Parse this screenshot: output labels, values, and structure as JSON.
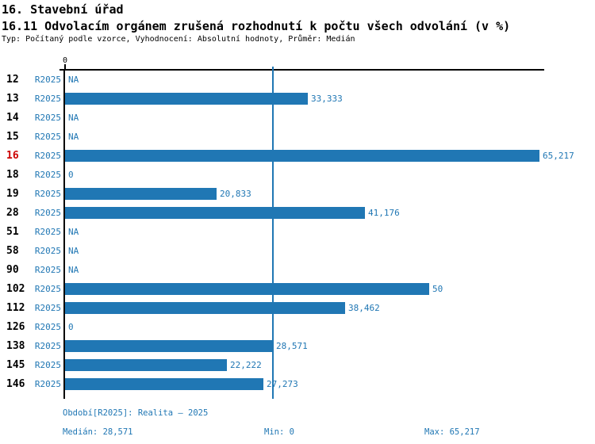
{
  "header": {
    "title1": "16. Stavební úřad",
    "title2": "16.11 Odvolacím orgánem zrušená rozhodnutí k počtu všech odvolání (v %)",
    "subtitle": "Typ: Počítaný podle vzorce, Vyhodnocení: Absolutní hodnoty, Průměr: Medián"
  },
  "chart_data": {
    "type": "bar",
    "orientation": "horizontal",
    "title": "16.11 Odvolacím orgánem zrušená rozhodnutí k počtu všech odvolání (v %)",
    "axis_zero_label": "0",
    "xlim": [
      0,
      65.217
    ],
    "median_value": 28.571,
    "series_name": "R2025",
    "legend_position": "none",
    "grid": "single median gridline",
    "categories": [
      "12",
      "13",
      "14",
      "15",
      "16",
      "18",
      "19",
      "28",
      "51",
      "58",
      "90",
      "102",
      "112",
      "126",
      "138",
      "145",
      "146"
    ],
    "rows": [
      {
        "id": "12",
        "period": "R2025",
        "value": null,
        "label": "NA",
        "highlight": false
      },
      {
        "id": "13",
        "period": "R2025",
        "value": 33.333,
        "label": "33,333",
        "highlight": false
      },
      {
        "id": "14",
        "period": "R2025",
        "value": null,
        "label": "NA",
        "highlight": false
      },
      {
        "id": "15",
        "period": "R2025",
        "value": null,
        "label": "NA",
        "highlight": false
      },
      {
        "id": "16",
        "period": "R2025",
        "value": 65.217,
        "label": "65,217",
        "highlight": true
      },
      {
        "id": "18",
        "period": "R2025",
        "value": 0,
        "label": "0",
        "highlight": false
      },
      {
        "id": "19",
        "period": "R2025",
        "value": 20.833,
        "label": "20,833",
        "highlight": false
      },
      {
        "id": "28",
        "period": "R2025",
        "value": 41.176,
        "label": "41,176",
        "highlight": false
      },
      {
        "id": "51",
        "period": "R2025",
        "value": null,
        "label": "NA",
        "highlight": false
      },
      {
        "id": "58",
        "period": "R2025",
        "value": null,
        "label": "NA",
        "highlight": false
      },
      {
        "id": "90",
        "period": "R2025",
        "value": null,
        "label": "NA",
        "highlight": false
      },
      {
        "id": "102",
        "period": "R2025",
        "value": 50,
        "label": "50",
        "highlight": false
      },
      {
        "id": "112",
        "period": "R2025",
        "value": 38.462,
        "label": "38,462",
        "highlight": false
      },
      {
        "id": "126",
        "period": "R2025",
        "value": 0,
        "label": "0",
        "highlight": false
      },
      {
        "id": "138",
        "period": "R2025",
        "value": 28.571,
        "label": "28,571",
        "highlight": false
      },
      {
        "id": "145",
        "period": "R2025",
        "value": 22.222,
        "label": "22,222",
        "highlight": false
      },
      {
        "id": "146",
        "period": "R2025",
        "value": 27.273,
        "label": "27,273",
        "highlight": false
      }
    ]
  },
  "footer": {
    "period_line": "Období[R2025]: Realita – 2025",
    "median_label": "Medián: 28,571",
    "min_label": "Min: 0",
    "max_label": "Max: 65,217"
  },
  "colors": {
    "bar_blue": "#2077b4",
    "highlight_red": "#cc0000",
    "axis_black": "#000000",
    "background": "#ffffff"
  }
}
